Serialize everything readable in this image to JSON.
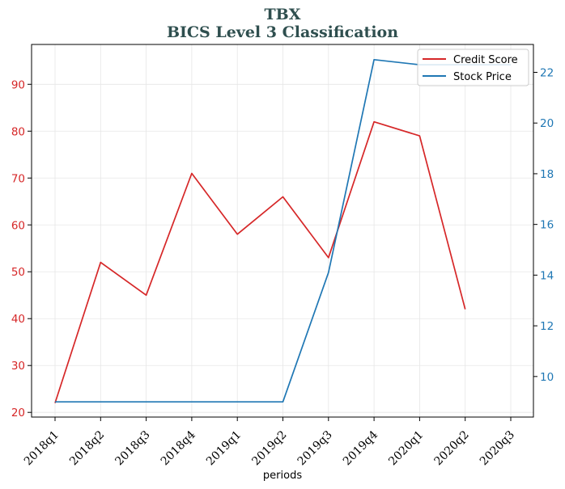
{
  "colors": {
    "title": "#2f4f4f",
    "left_axis": "#d62728",
    "right_axis": "#1f77b4",
    "grid": "#e6e6e6"
  },
  "chart_data": {
    "type": "line",
    "title": "TBX",
    "subtitle": "BICS Level 3 Classification",
    "xlabel": "periods",
    "ylabel_left": "",
    "ylabel_right": "",
    "grid": true,
    "legend_position": "top-right",
    "categories": [
      "2018q1",
      "2018q2",
      "2018q3",
      "2018q4",
      "2019q1",
      "2019q2",
      "2019q3",
      "2019q4",
      "2020q1",
      "2020q2",
      "2020q3"
    ],
    "left_axis": {
      "ylim": [
        19,
        98.5
      ],
      "ticks": [
        20,
        30,
        40,
        50,
        60,
        70,
        80,
        90
      ]
    },
    "right_axis": {
      "ylim": [
        8.4,
        23.1
      ],
      "ticks": [
        10,
        12,
        14,
        16,
        18,
        20,
        22
      ]
    },
    "series": [
      {
        "name": "Credit Score",
        "axis": "left",
        "color": "#d62728",
        "values": [
          22,
          52,
          45,
          71,
          58,
          66,
          53,
          82,
          79,
          42,
          null
        ]
      },
      {
        "name": "Stock Price",
        "axis": "right",
        "color": "#1f77b4",
        "values": [
          9.0,
          9.0,
          9.0,
          9.0,
          9.0,
          9.0,
          14.1,
          22.5,
          22.3,
          22.3,
          22.3
        ]
      }
    ]
  }
}
